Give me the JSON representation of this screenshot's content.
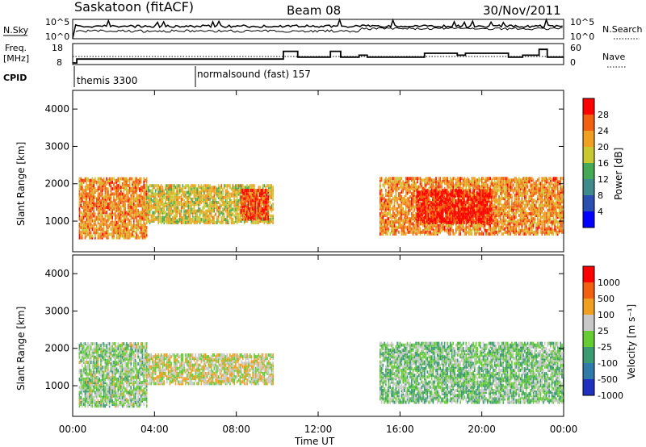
{
  "header": {
    "station": "Saskatoon (fitACF)",
    "beam": "Beam 08",
    "date": "30/Nov/2011"
  },
  "left_labels": {
    "nsky": "N.Sky",
    "freq_line1": "Freq.",
    "freq_line2": "[MHz]",
    "cpid": "CPID"
  },
  "right_labels": {
    "nsearch": "N.Search",
    "nave": "Nave"
  },
  "noise_panel": {
    "left_ticks": [
      "10^5",
      "10^0"
    ],
    "right_ticks": [
      "10^5",
      "10^0"
    ]
  },
  "freq_panel": {
    "left_ticks": [
      "18",
      "8"
    ],
    "right_ticks": [
      "60",
      "0"
    ]
  },
  "cpid_panel": {
    "segments": [
      {
        "label": "themis 3300",
        "start_hour": 0
      },
      {
        "label": "normalsound (fast) 157",
        "start_hour": 6
      }
    ]
  },
  "power_panel": {
    "ylabel": "Slant Range [km]",
    "yticks": [
      "1000",
      "2000",
      "3000",
      "4000"
    ],
    "colorbar_title": "Power [dB]",
    "colorbar_ticks": [
      "28",
      "24",
      "20",
      "16",
      "12",
      "8",
      "4"
    ],
    "colors": [
      "#0000ff",
      "#2a4fb0",
      "#3f8a8a",
      "#44aa55",
      "#c8c830",
      "#f0a020",
      "#f06010",
      "#ff0000"
    ]
  },
  "velocity_panel": {
    "ylabel": "Slant Range [km]",
    "yticks": [
      "1000",
      "2000",
      "3000",
      "4000"
    ],
    "colorbar_title": "Velocity [m s⁻¹]",
    "colorbar_ticks": [
      "1000",
      "500",
      "100",
      "25",
      "-25",
      "-100",
      "-500",
      "-1000"
    ],
    "colors": [
      "#2030c0",
      "#2e7aa8",
      "#3a9a70",
      "#66cc33",
      "#c8c8c8",
      "#f0a020",
      "#f06010",
      "#ff0000"
    ]
  },
  "xaxis": {
    "ticks": [
      "00:00",
      "04:00",
      "08:00",
      "12:00",
      "16:00",
      "20:00",
      "00:00"
    ],
    "label": "Time UT"
  },
  "chart_data": [
    {
      "type": "heatmap",
      "name": "power",
      "x_range_hours": [
        0,
        24
      ],
      "y_range_km": [
        180,
        4500
      ],
      "value_range_db": [
        0,
        30
      ],
      "regions": [
        {
          "t0": 0.3,
          "t1": 3.6,
          "r0": 600,
          "r1": 2200,
          "level": 22
        },
        {
          "t0": 3.6,
          "t1": 9.8,
          "r0": 1000,
          "r1": 2000,
          "level": 18
        },
        {
          "t0": 8.2,
          "t1": 9.6,
          "r0": 1100,
          "r1": 1900,
          "level": 26
        },
        {
          "t0": 15.0,
          "t1": 24,
          "r0": 700,
          "r1": 2200,
          "level": 22
        },
        {
          "t0": 16.8,
          "t1": 20.5,
          "r0": 1000,
          "r1": 1900,
          "level": 28
        }
      ]
    },
    {
      "type": "heatmap",
      "name": "velocity",
      "x_range_hours": [
        0,
        24
      ],
      "y_range_km": [
        180,
        4500
      ],
      "value_range_ms": [
        -1000,
        1000
      ],
      "regions": [
        {
          "t0": 0.3,
          "t1": 3.6,
          "r0": 500,
          "r1": 2200,
          "level": -50
        },
        {
          "t0": 3.6,
          "t1": 9.8,
          "r0": 1100,
          "r1": 1900,
          "level": 150
        },
        {
          "t0": 15.0,
          "t1": 24,
          "r0": 600,
          "r1": 2200,
          "level": -120
        }
      ]
    }
  ]
}
